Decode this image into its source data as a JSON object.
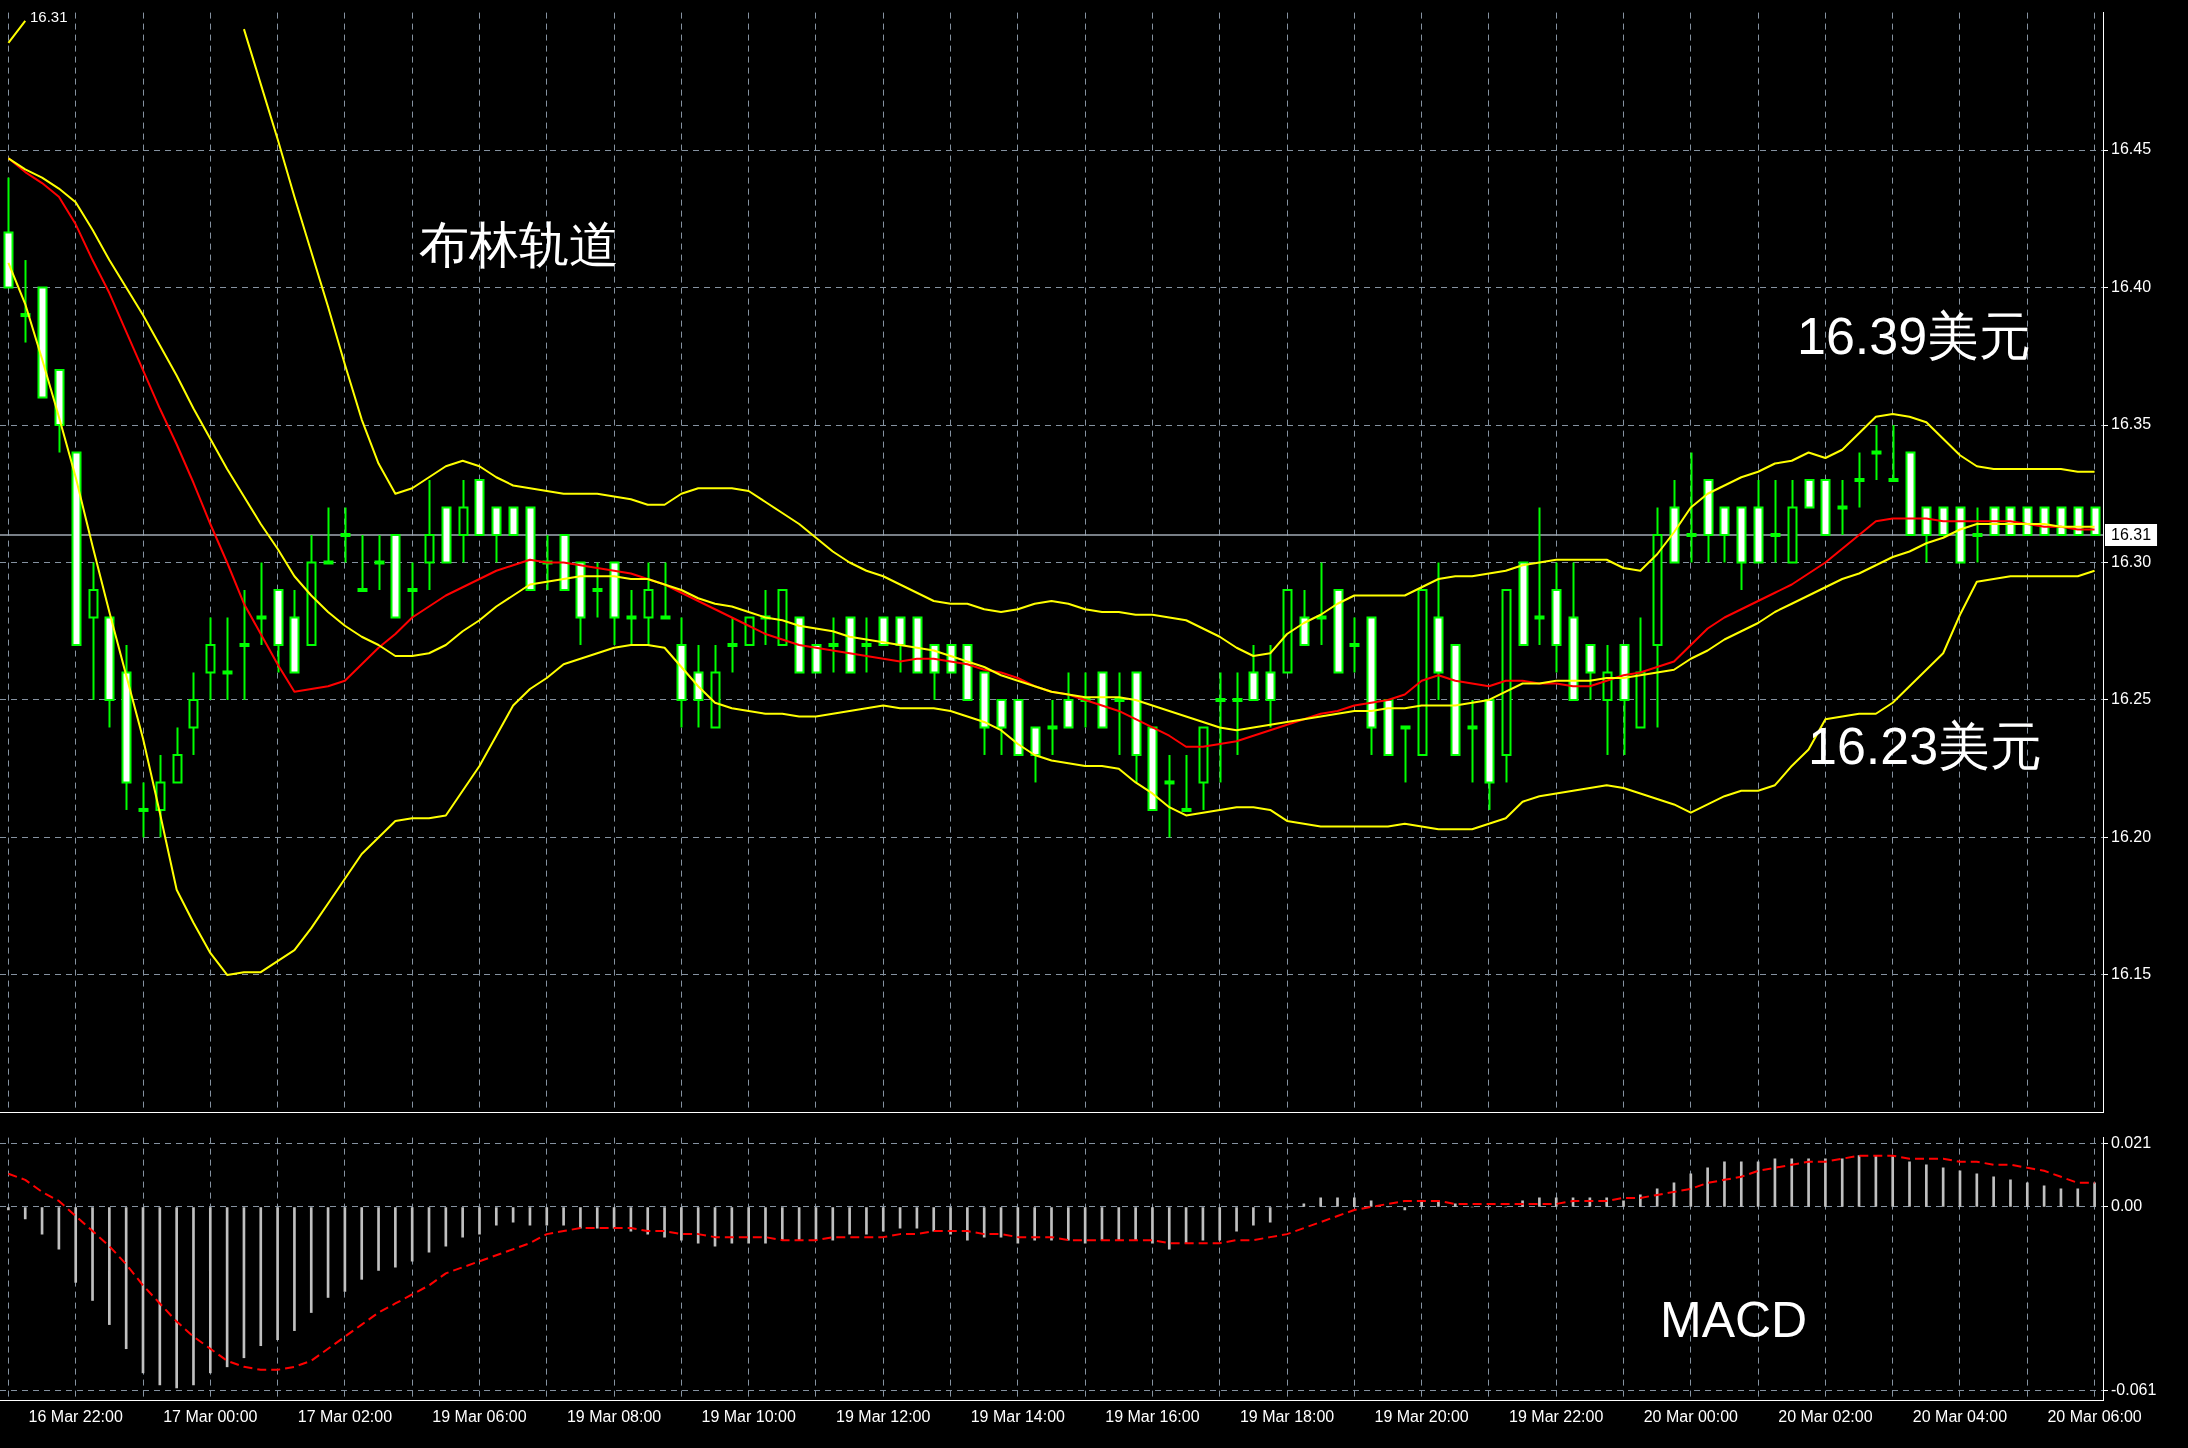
{
  "chart_data": [
    {
      "type": "candlestick",
      "categories": [
        null,
        null,
        null,
        null,
        null,
        null,
        null,
        null,
        null,
        null,
        null,
        null,
        null,
        null,
        null,
        null,
        null,
        null,
        null,
        null,
        null,
        null,
        null,
        null,
        null,
        null,
        null,
        null,
        null,
        null,
        null,
        null,
        null,
        null,
        null,
        null,
        null,
        null,
        null,
        null,
        null,
        null,
        null,
        null,
        null,
        null,
        null,
        null,
        null,
        null,
        null,
        null,
        null,
        null,
        null,
        null,
        null,
        null,
        null,
        null,
        null,
        null,
        null,
        null,
        null,
        null,
        null,
        null,
        null,
        null,
        null,
        null,
        null,
        null,
        null,
        null,
        null,
        null,
        null,
        null,
        null,
        null,
        null,
        null,
        null,
        null,
        null,
        null,
        null,
        null,
        null,
        null,
        null,
        null,
        null,
        null,
        null,
        null,
        null,
        null,
        null,
        null,
        null,
        null,
        null,
        null,
        null,
        null,
        null,
        null,
        null,
        null,
        null,
        null,
        null,
        null,
        null,
        null,
        null,
        null,
        null,
        null,
        null,
        null,
        null
      ],
      "color": "#00ff00",
      "ohlc": [
        [
          16.42,
          16.44,
          16.4,
          16.4
        ],
        [
          16.39,
          16.41,
          16.38,
          16.39
        ],
        [
          16.4,
          16.4,
          16.36,
          16.36
        ],
        [
          16.37,
          16.37,
          16.34,
          16.35
        ],
        [
          16.34,
          16.34,
          16.27,
          16.27
        ],
        [
          16.28,
          16.3,
          16.25,
          16.29
        ],
        [
          16.28,
          16.28,
          16.24,
          16.25
        ],
        [
          16.26,
          16.27,
          16.21,
          16.22
        ],
        [
          16.21,
          16.22,
          16.2,
          16.21
        ],
        [
          16.21,
          16.23,
          16.2,
          16.22
        ],
        [
          16.22,
          16.24,
          16.22,
          16.23
        ],
        [
          16.24,
          16.26,
          16.23,
          16.25
        ],
        [
          16.26,
          16.28,
          16.25,
          16.27
        ],
        [
          16.26,
          16.28,
          16.25,
          16.26
        ],
        [
          16.27,
          16.29,
          16.25,
          16.27
        ],
        [
          16.28,
          16.3,
          16.27,
          16.28
        ],
        [
          16.29,
          16.29,
          16.26,
          16.27
        ],
        [
          16.28,
          16.29,
          16.26,
          16.26
        ],
        [
          16.27,
          16.31,
          16.27,
          16.3
        ],
        [
          16.3,
          16.32,
          16.3,
          16.3
        ],
        [
          16.31,
          16.32,
          16.3,
          16.31
        ],
        [
          16.29,
          16.31,
          16.29,
          16.29
        ],
        [
          16.3,
          16.31,
          16.29,
          16.3
        ],
        [
          16.31,
          16.31,
          16.28,
          16.28
        ],
        [
          16.29,
          16.3,
          16.28,
          16.29
        ],
        [
          16.3,
          16.33,
          16.29,
          16.31
        ],
        [
          16.32,
          16.32,
          16.3,
          16.3
        ],
        [
          16.31,
          16.33,
          16.3,
          16.32
        ],
        [
          16.33,
          16.33,
          16.31,
          16.31
        ],
        [
          16.32,
          16.32,
          16.3,
          16.31
        ],
        [
          16.32,
          16.32,
          16.31,
          16.31
        ],
        [
          16.32,
          16.32,
          16.29,
          16.29
        ],
        [
          16.3,
          16.31,
          16.29,
          16.3
        ],
        [
          16.31,
          16.31,
          16.29,
          16.29
        ],
        [
          16.3,
          16.3,
          16.27,
          16.28
        ],
        [
          16.29,
          16.3,
          16.28,
          16.29
        ],
        [
          16.3,
          16.3,
          16.27,
          16.28
        ],
        [
          16.28,
          16.29,
          16.27,
          16.28
        ],
        [
          16.28,
          16.3,
          16.27,
          16.29
        ],
        [
          16.28,
          16.3,
          16.28,
          16.28
        ],
        [
          16.27,
          16.28,
          16.24,
          16.25
        ],
        [
          16.26,
          16.27,
          16.24,
          16.25
        ],
        [
          16.24,
          16.27,
          16.24,
          16.26
        ],
        [
          16.27,
          16.28,
          16.26,
          16.27
        ],
        [
          16.27,
          16.28,
          16.27,
          16.28
        ],
        [
          16.28,
          16.29,
          16.27,
          16.28
        ],
        [
          16.27,
          16.29,
          16.27,
          16.29
        ],
        [
          16.28,
          16.28,
          16.26,
          16.26
        ],
        [
          16.27,
          16.27,
          16.26,
          16.26
        ],
        [
          16.27,
          16.28,
          16.26,
          16.27
        ],
        [
          16.28,
          16.28,
          16.26,
          16.26
        ],
        [
          16.27,
          16.28,
          16.26,
          16.27
        ],
        [
          16.28,
          16.28,
          16.27,
          16.27
        ],
        [
          16.28,
          16.28,
          16.26,
          16.27
        ],
        [
          16.28,
          16.28,
          16.26,
          16.26
        ],
        [
          16.27,
          16.27,
          16.25,
          16.26
        ],
        [
          16.27,
          16.27,
          16.26,
          16.26
        ],
        [
          16.27,
          16.27,
          16.25,
          16.25
        ],
        [
          16.26,
          16.26,
          16.23,
          16.24
        ],
        [
          16.25,
          16.25,
          16.23,
          16.24
        ],
        [
          16.25,
          16.25,
          16.23,
          16.23
        ],
        [
          16.24,
          16.24,
          16.22,
          16.23
        ],
        [
          16.24,
          16.25,
          16.23,
          16.24
        ],
        [
          16.25,
          16.26,
          16.24,
          16.24
        ],
        [
          16.25,
          16.26,
          16.24,
          16.25
        ],
        [
          16.26,
          16.26,
          16.24,
          16.24
        ],
        [
          16.25,
          16.26,
          16.23,
          16.25
        ],
        [
          16.26,
          16.26,
          16.22,
          16.23
        ],
        [
          16.24,
          16.24,
          16.21,
          16.21
        ],
        [
          16.22,
          16.23,
          16.2,
          16.22
        ],
        [
          16.21,
          16.23,
          16.21,
          16.21
        ],
        [
          16.22,
          16.24,
          16.21,
          16.24
        ],
        [
          16.25,
          16.26,
          16.22,
          16.25
        ],
        [
          16.25,
          16.26,
          16.23,
          16.25
        ],
        [
          16.26,
          16.27,
          16.25,
          16.25
        ],
        [
          16.26,
          16.27,
          16.24,
          16.25
        ],
        [
          16.26,
          16.29,
          16.26,
          16.29
        ],
        [
          16.28,
          16.29,
          16.27,
          16.27
        ],
        [
          16.28,
          16.3,
          16.27,
          16.28
        ],
        [
          16.29,
          16.29,
          16.26,
          16.26
        ],
        [
          16.27,
          16.28,
          16.26,
          16.27
        ],
        [
          16.28,
          16.28,
          16.23,
          16.24
        ],
        [
          16.25,
          16.25,
          16.23,
          16.23
        ],
        [
          16.24,
          16.24,
          16.22,
          16.24
        ],
        [
          16.23,
          16.29,
          16.23,
          16.29
        ],
        [
          16.28,
          16.3,
          16.25,
          16.26
        ],
        [
          16.27,
          16.27,
          16.23,
          16.23
        ],
        [
          16.24,
          16.25,
          16.22,
          16.24
        ],
        [
          16.25,
          16.25,
          16.21,
          16.22
        ],
        [
          16.23,
          16.29,
          16.22,
          16.29
        ],
        [
          16.3,
          16.3,
          16.27,
          16.27
        ],
        [
          16.28,
          16.32,
          16.27,
          16.28
        ],
        [
          16.29,
          16.3,
          16.26,
          16.27
        ],
        [
          16.28,
          16.3,
          16.25,
          16.25
        ],
        [
          16.27,
          16.27,
          16.25,
          16.26
        ],
        [
          16.25,
          16.27,
          16.23,
          16.26
        ],
        [
          16.27,
          16.27,
          16.23,
          16.25
        ],
        [
          16.24,
          16.28,
          16.24,
          16.26
        ],
        [
          16.27,
          16.32,
          16.24,
          16.31
        ],
        [
          16.32,
          16.33,
          16.3,
          16.3
        ],
        [
          16.31,
          16.34,
          16.3,
          16.31
        ],
        [
          16.33,
          16.33,
          16.3,
          16.31
        ],
        [
          16.32,
          16.32,
          16.3,
          16.31
        ],
        [
          16.32,
          16.32,
          16.29,
          16.3
        ],
        [
          16.32,
          16.33,
          16.3,
          16.3
        ],
        [
          16.31,
          16.33,
          16.3,
          16.31
        ],
        [
          16.3,
          16.33,
          16.3,
          16.32
        ],
        [
          16.33,
          16.33,
          16.32,
          16.32
        ],
        [
          16.33,
          16.33,
          16.31,
          16.31
        ],
        [
          16.32,
          16.33,
          16.31,
          16.32
        ],
        [
          16.33,
          16.34,
          16.32,
          16.33
        ],
        [
          16.34,
          16.35,
          16.33,
          16.34
        ],
        [
          16.33,
          16.35,
          16.33,
          16.33
        ],
        [
          16.34,
          16.34,
          16.31,
          16.31
        ],
        [
          16.32,
          16.32,
          16.3,
          16.31
        ],
        [
          16.32,
          16.32,
          16.31,
          16.31
        ],
        [
          16.32,
          16.32,
          16.3,
          16.3
        ],
        [
          16.31,
          16.32,
          16.3,
          16.31
        ],
        [
          16.32,
          16.32,
          16.31,
          16.31
        ],
        [
          16.32,
          16.32,
          16.31,
          16.31
        ],
        [
          16.32,
          16.32,
          16.31,
          16.31
        ],
        [
          16.32,
          16.32,
          16.31,
          16.31
        ],
        [
          16.32,
          16.32,
          16.31,
          16.31
        ],
        [
          16.32,
          16.32,
          16.31,
          16.31
        ],
        [
          16.32,
          16.32,
          16.31,
          16.31
        ]
      ],
      "series": [
        {
          "type": "line",
          "color": "#ffff00",
          "values": [
            16.489,
            16.497,
            null,
            null,
            null,
            null,
            null,
            null,
            null,
            null,
            null,
            null,
            null,
            null,
            16.494,
            16.474,
            16.454,
            16.433,
            16.413,
            16.393,
            16.372,
            16.352,
            16.336,
            16.325,
            16.327,
            16.331,
            16.335,
            16.337,
            16.335,
            16.331,
            16.328,
            16.327,
            16.326,
            16.325,
            16.325,
            16.325,
            16.324,
            16.323,
            16.321,
            16.321,
            16.325,
            16.327,
            16.327,
            16.327,
            16.326,
            16.322,
            16.318,
            16.314,
            16.309,
            16.304,
            16.3,
            16.297,
            16.295,
            16.292,
            16.289,
            16.286,
            16.285,
            16.285,
            16.283,
            16.282,
            16.283,
            16.285,
            16.286,
            16.285,
            16.283,
            16.282,
            16.282,
            16.281,
            16.281,
            16.28,
            16.279,
            16.276,
            16.273,
            16.269,
            16.266,
            16.267,
            16.274,
            16.278,
            16.281,
            16.285,
            16.288,
            16.288,
            16.288,
            16.288,
            16.291,
            16.294,
            16.295,
            16.295,
            16.296,
            16.297,
            16.299,
            16.3,
            16.301,
            16.301,
            16.301,
            16.301,
            16.298,
            16.297,
            16.303,
            16.311,
            16.32,
            16.325,
            16.328,
            16.331,
            16.333,
            16.336,
            16.337,
            16.34,
            16.338,
            16.341,
            16.347,
            16.353,
            16.354,
            16.353,
            16.351,
            16.345,
            16.339,
            16.335,
            16.334,
            16.334,
            16.334,
            16.334,
            16.334,
            16.333,
            16.333
          ]
        },
        {
          "type": "line",
          "color": "#ffff00",
          "values": [
            16.447,
            16.443,
            16.44,
            16.436,
            16.431,
            16.421,
            16.41,
            16.4,
            16.39,
            16.379,
            16.368,
            16.356,
            16.345,
            16.334,
            16.324,
            16.314,
            16.305,
            16.295,
            16.288,
            16.282,
            16.277,
            16.273,
            16.27,
            16.266,
            16.266,
            16.267,
            16.27,
            16.275,
            16.279,
            16.284,
            16.288,
            16.292,
            16.293,
            16.294,
            16.295,
            16.295,
            16.295,
            16.294,
            16.294,
            16.292,
            16.29,
            16.287,
            16.285,
            16.284,
            16.282,
            16.28,
            16.279,
            16.277,
            16.276,
            16.275,
            16.273,
            16.272,
            16.271,
            16.27,
            16.269,
            16.268,
            16.266,
            16.264,
            16.262,
            16.259,
            16.257,
            16.255,
            16.253,
            16.252,
            16.251,
            16.251,
            16.251,
            16.25,
            16.248,
            16.246,
            16.244,
            16.242,
            16.24,
            16.239,
            16.24,
            16.241,
            16.242,
            16.243,
            16.244,
            16.245,
            16.246,
            16.246,
            16.247,
            16.247,
            16.248,
            16.248,
            16.248,
            16.249,
            16.25,
            16.253,
            16.256,
            16.256,
            16.257,
            16.257,
            16.257,
            16.258,
            16.258,
            16.259,
            16.26,
            16.261,
            16.265,
            16.268,
            16.272,
            16.275,
            16.278,
            16.282,
            16.285,
            16.288,
            16.291,
            16.294,
            16.296,
            16.299,
            16.302,
            16.304,
            16.307,
            16.309,
            16.312,
            16.314,
            16.314,
            16.314,
            16.314,
            16.314,
            16.313,
            16.313,
            16.313
          ]
        },
        {
          "type": "line",
          "color": "#ffff00",
          "values": [
            16.409,
            16.394,
            16.374,
            16.353,
            16.331,
            16.306,
            16.282,
            16.259,
            16.236,
            16.209,
            16.181,
            16.169,
            16.158,
            16.15,
            16.151,
            16.151,
            16.155,
            16.159,
            16.167,
            16.176,
            16.185,
            16.194,
            16.2,
            16.206,
            16.207,
            16.207,
            16.208,
            16.217,
            16.226,
            16.237,
            16.248,
            16.254,
            16.258,
            16.263,
            16.265,
            16.267,
            16.269,
            16.27,
            16.27,
            16.269,
            16.262,
            16.255,
            16.249,
            16.247,
            16.246,
            16.245,
            16.245,
            16.244,
            16.244,
            16.245,
            16.246,
            16.247,
            16.248,
            16.247,
            16.247,
            16.247,
            16.246,
            16.244,
            16.242,
            16.239,
            16.234,
            16.23,
            16.228,
            16.227,
            16.226,
            16.226,
            16.225,
            16.22,
            16.216,
            16.211,
            16.208,
            16.209,
            16.21,
            16.211,
            16.211,
            16.21,
            16.206,
            16.205,
            16.204,
            16.204,
            16.204,
            16.204,
            16.204,
            16.205,
            16.204,
            16.203,
            16.203,
            16.203,
            16.205,
            16.207,
            16.213,
            16.215,
            16.216,
            16.217,
            16.218,
            16.219,
            16.218,
            16.216,
            16.214,
            16.212,
            16.209,
            16.212,
            16.215,
            16.217,
            16.217,
            16.219,
            16.226,
            16.232,
            16.243,
            16.244,
            16.245,
            16.245,
            16.249,
            16.255,
            16.261,
            16.267,
            16.281,
            16.293,
            16.294,
            16.295,
            16.295,
            16.295,
            16.295,
            16.295,
            16.297
          ]
        },
        {
          "type": "line",
          "color": "#ff0000",
          "values": [
            16.447,
            16.442,
            16.438,
            16.433,
            16.423,
            16.41,
            16.398,
            16.384,
            16.37,
            16.356,
            16.343,
            16.329,
            16.314,
            16.3,
            16.285,
            16.274,
            16.263,
            16.253,
            16.254,
            16.255,
            16.257,
            16.263,
            16.269,
            16.274,
            16.28,
            16.284,
            16.288,
            16.291,
            16.294,
            16.297,
            16.299,
            16.301,
            16.3,
            16.3,
            16.299,
            16.298,
            16.297,
            16.296,
            16.294,
            16.292,
            16.289,
            16.286,
            16.283,
            16.28,
            16.277,
            16.274,
            16.272,
            16.27,
            16.269,
            16.268,
            16.267,
            16.266,
            16.265,
            16.264,
            16.265,
            16.265,
            16.264,
            16.263,
            16.261,
            16.26,
            16.258,
            16.255,
            16.253,
            16.252,
            16.25,
            16.248,
            16.246,
            16.243,
            16.24,
            16.237,
            16.233,
            16.233,
            16.234,
            16.235,
            16.237,
            16.239,
            16.241,
            16.243,
            16.245,
            16.246,
            16.248,
            16.249,
            16.25,
            16.252,
            16.257,
            16.259,
            16.257,
            16.256,
            16.255,
            16.257,
            16.257,
            16.256,
            16.256,
            16.255,
            16.255,
            16.257,
            16.259,
            16.26,
            16.262,
            16.264,
            16.27,
            16.276,
            16.28,
            16.283,
            16.286,
            16.289,
            16.292,
            16.296,
            16.3,
            16.305,
            16.31,
            16.315,
            16.316,
            16.316,
            16.316,
            16.315,
            16.315,
            16.315,
            16.315,
            16.315,
            16.314,
            16.313,
            16.313,
            16.312,
            16.312
          ]
        }
      ],
      "ylim": [
        16.1,
        16.5
      ],
      "yticks": [
        16.15,
        {
          "value": 16.2,
          "label": "16.20"
        },
        16.25,
        {
          "value": 16.3,
          "label": "16.30"
        },
        16.35,
        {
          "value": 16.4,
          "label": "16.40"
        },
        16.45
      ],
      "grid": true,
      "marker": "none",
      "tick_labels": "y",
      "ref_lines": [
        {
          "axis": "y",
          "value": 16.31,
          "label": "16.31",
          "color": "#a0aab4"
        }
      ],
      "annotations": [
        "16.31",
        "布林轨道",
        "16.39美元",
        "16.23美元"
      ]
    },
    {
      "type": "bar",
      "categories": [
        null,
        null,
        null,
        null,
        "16 Mar 22:00",
        null,
        null,
        null,
        null,
        null,
        null,
        null,
        "17 Mar 00:00",
        null,
        null,
        null,
        null,
        null,
        null,
        null,
        "17 Mar 02:00",
        null,
        null,
        null,
        null,
        null,
        null,
        null,
        "19 Mar 06:00",
        null,
        null,
        null,
        null,
        null,
        null,
        null,
        "19 Mar 08:00",
        null,
        null,
        null,
        null,
        null,
        null,
        null,
        "19 Mar 10:00",
        null,
        null,
        null,
        null,
        null,
        null,
        null,
        "19 Mar 12:00",
        null,
        null,
        null,
        null,
        null,
        null,
        null,
        "19 Mar 14:00",
        null,
        null,
        null,
        null,
        null,
        null,
        null,
        "19 Mar 16:00",
        null,
        null,
        null,
        null,
        null,
        null,
        null,
        "19 Mar 18:00",
        null,
        null,
        null,
        null,
        null,
        null,
        null,
        "19 Mar 20:00",
        null,
        null,
        null,
        null,
        null,
        null,
        null,
        "19 Mar 22:00",
        null,
        null,
        null,
        null,
        null,
        null,
        null,
        "20 Mar 00:00",
        null,
        null,
        null,
        null,
        null,
        null,
        null,
        "20 Mar 02:00",
        null,
        null,
        null,
        null,
        null,
        null,
        null,
        "20 Mar 04:00",
        null,
        null,
        null,
        null,
        null,
        null,
        null,
        "20 Mar 06:00"
      ],
      "series": [
        {
          "type": "bar",
          "color": "#c0c0c0",
          "values": [
            -0.001,
            -0.004,
            -0.009,
            -0.014,
            -0.025,
            -0.031,
            -0.039,
            -0.047,
            -0.055,
            -0.059,
            -0.06,
            -0.059,
            -0.055,
            -0.053,
            -0.05,
            -0.046,
            -0.044,
            -0.041,
            -0.035,
            -0.03,
            -0.028,
            -0.024,
            -0.021,
            -0.02,
            -0.018,
            -0.015,
            -0.013,
            -0.01,
            -0.009,
            -0.006,
            -0.005,
            -0.006,
            -0.006,
            -0.006,
            -0.007,
            -0.007,
            -0.007,
            -0.008,
            -0.009,
            -0.01,
            -0.011,
            -0.012,
            -0.013,
            -0.012,
            -0.012,
            -0.012,
            -0.011,
            -0.011,
            -0.011,
            -0.011,
            -0.009,
            -0.009,
            -0.008,
            -0.007,
            -0.007,
            -0.008,
            -0.009,
            -0.011,
            -0.01,
            -0.01,
            -0.012,
            -0.011,
            -0.011,
            -0.011,
            -0.012,
            -0.011,
            -0.011,
            -0.011,
            -0.012,
            -0.014,
            -0.012,
            -0.011,
            -0.011,
            -0.008,
            -0.006,
            -0.005,
            0,
            0.001,
            0.003,
            0.003,
            0.003,
            0.002,
            0,
            -0.001,
            0.002,
            0.002,
            0.001,
            0,
            0,
            0,
            0.002,
            0.003,
            0.003,
            0.003,
            0.003,
            0.003,
            0.002,
            0.004,
            0.006,
            0.008,
            0.011,
            0.013,
            0.015,
            0.015,
            0.015,
            0.016,
            0.016,
            0.016,
            0.016,
            0.016,
            0.017,
            0.017,
            0.017,
            0.015,
            0.014,
            0.013,
            0.012,
            0.011,
            0.01,
            0.009,
            0.008,
            0.007,
            0.006,
            0.006,
            0.008
          ]
        },
        {
          "type": "line",
          "color": "#ff0000",
          "line_style": "dashed",
          "values": [
            0.011,
            0.009,
            0.005,
            0.002,
            -0.003,
            -0.008,
            -0.013,
            -0.019,
            -0.026,
            -0.032,
            -0.038,
            -0.043,
            -0.047,
            -0.051,
            -0.053,
            -0.054,
            -0.054,
            -0.053,
            -0.051,
            -0.047,
            -0.043,
            -0.039,
            -0.035,
            -0.032,
            -0.029,
            -0.026,
            -0.022,
            -0.02,
            -0.018,
            -0.016,
            -0.014,
            -0.012,
            -0.009,
            -0.008,
            -0.007,
            -0.007,
            -0.007,
            -0.007,
            -0.008,
            -0.008,
            -0.009,
            -0.009,
            -0.01,
            -0.01,
            -0.01,
            -0.01,
            -0.011,
            -0.011,
            -0.011,
            -0.01,
            -0.01,
            -0.01,
            -0.01,
            -0.009,
            -0.009,
            -0.008,
            -0.008,
            -0.008,
            -0.009,
            -0.009,
            -0.01,
            -0.01,
            -0.01,
            -0.011,
            -0.011,
            -0.011,
            -0.011,
            -0.011,
            -0.011,
            -0.012,
            -0.012,
            -0.012,
            -0.012,
            -0.011,
            -0.011,
            -0.01,
            -0.009,
            -0.007,
            -0.005,
            -0.003,
            -0.001,
            0,
            0.001,
            0.002,
            0.002,
            0.002,
            0.001,
            0.001,
            0.001,
            0.001,
            0.001,
            0.001,
            0.001,
            0.002,
            0.002,
            0.002,
            0.003,
            0.003,
            0.004,
            0.005,
            0.006,
            0.008,
            0.009,
            0.01,
            0.012,
            0.013,
            0.014,
            0.015,
            0.015,
            0.016,
            0.017,
            0.017,
            0.017,
            0.016,
            0.016,
            0.016,
            0.015,
            0.015,
            0.014,
            0.014,
            0.013,
            0.012,
            0.01,
            0.008,
            0.008
          ]
        }
      ],
      "ylim": [
        -0.064,
        0.023
      ],
      "yticks": [
        0.021,
        {
          "value": 0,
          "label": "0.00"
        },
        -0.061
      ],
      "grid": true,
      "marker": "none",
      "annotations": [
        "MACD"
      ]
    }
  ]
}
